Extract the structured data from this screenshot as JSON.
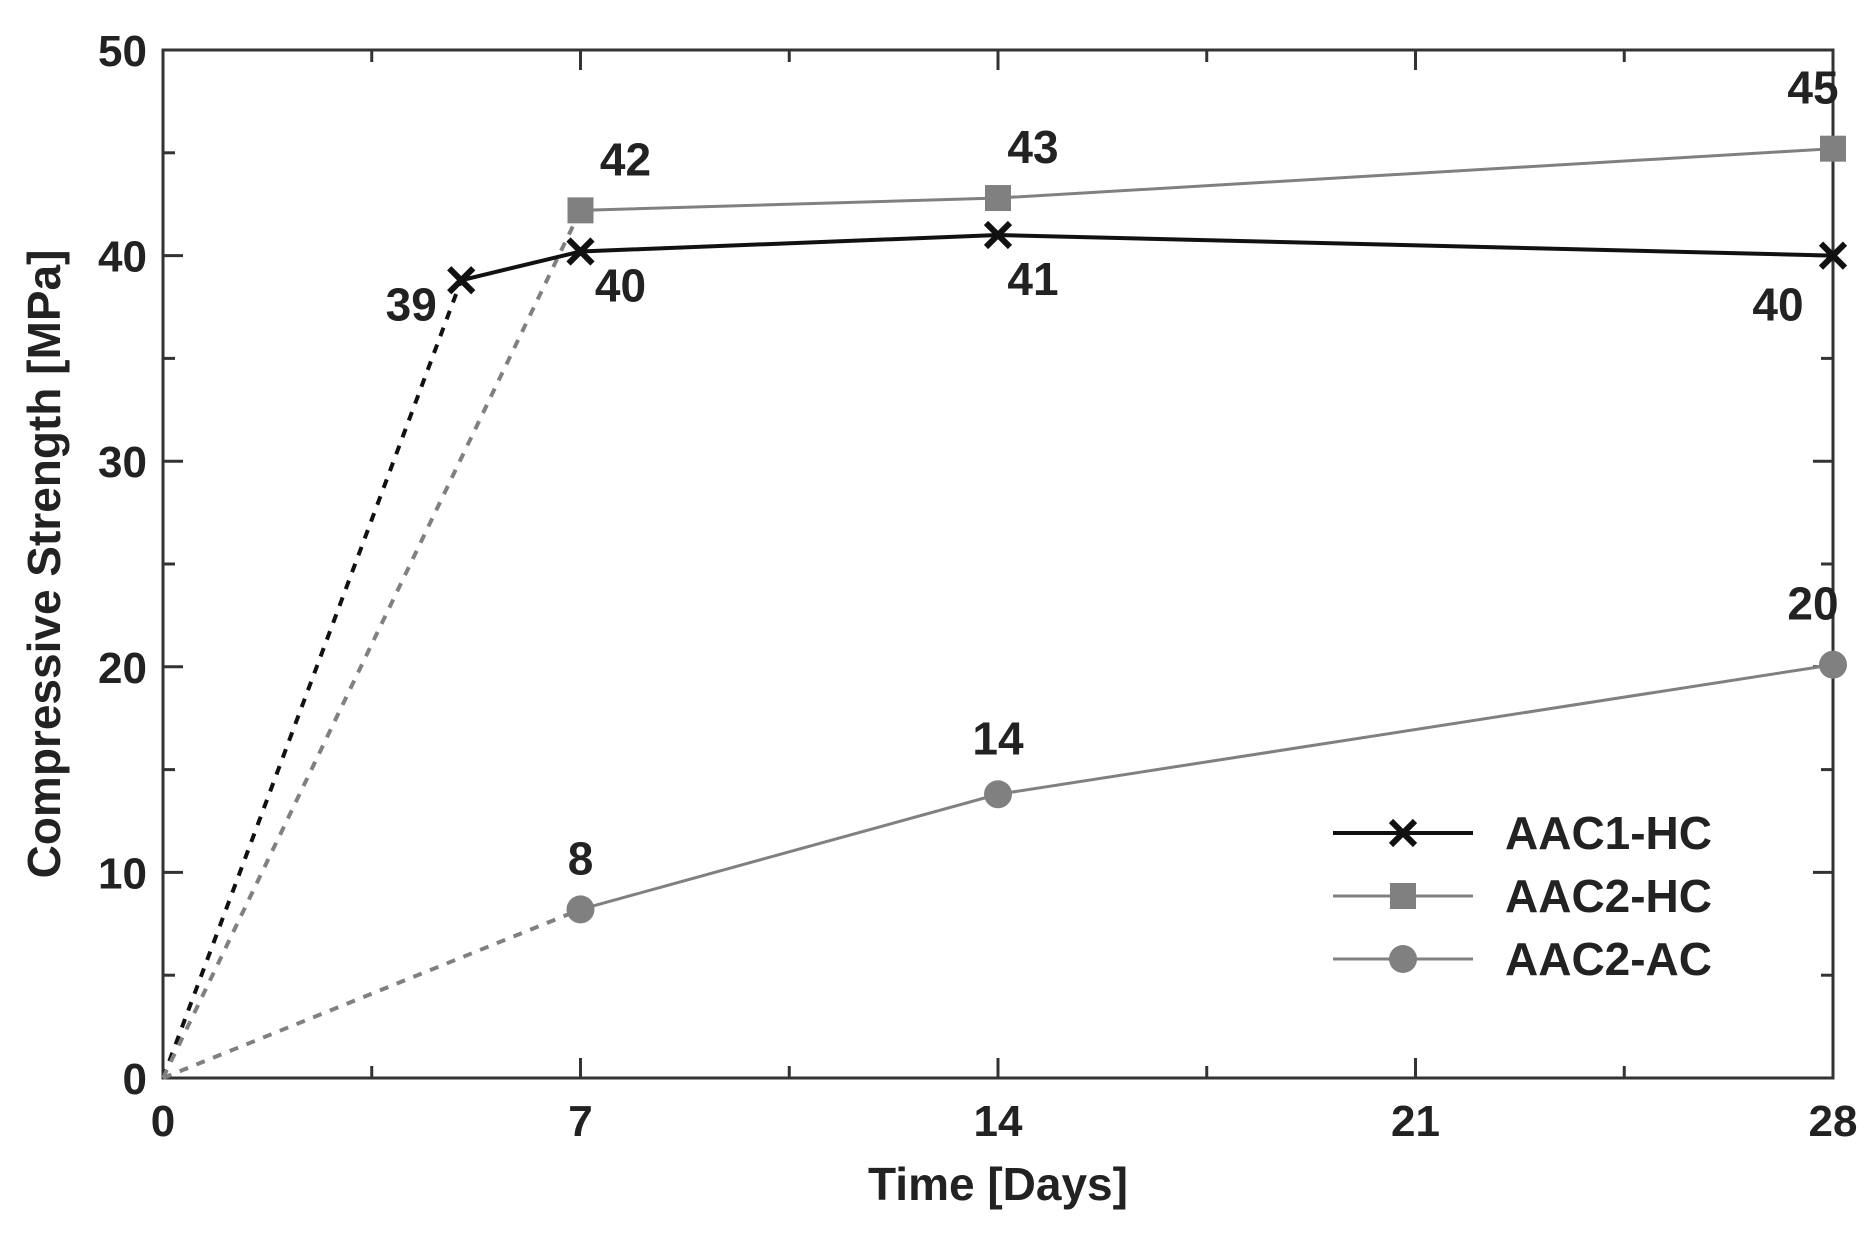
{
  "chart_data": {
    "type": "line",
    "xlabel": "Time [Days]",
    "ylabel": "Compressive Strength [MPa]",
    "xlim": [
      0,
      28
    ],
    "ylim": [
      0,
      50
    ],
    "xticks": [
      0,
      7,
      14,
      21,
      28
    ],
    "yticks": [
      0,
      10,
      20,
      30,
      40,
      50
    ],
    "grid": false,
    "legend_position": "bottom-right",
    "series": [
      {
        "name": "AAC1-HC",
        "marker": "x",
        "color": "#111111",
        "x": [
          5,
          7,
          14,
          28
        ],
        "y": [
          38.8,
          40.2,
          41.0,
          40.0
        ],
        "labels": [
          "39",
          "40",
          "41",
          "40"
        ],
        "dashed_from_origin": true
      },
      {
        "name": "AAC2-HC",
        "marker": "square",
        "color": "#808080",
        "x": [
          7,
          14,
          28
        ],
        "y": [
          42.2,
          42.8,
          45.2
        ],
        "labels": [
          "42",
          "43",
          "45"
        ],
        "dashed_from_origin": true
      },
      {
        "name": "AAC2-AC",
        "marker": "circle",
        "color": "#808080",
        "x": [
          7,
          14,
          28
        ],
        "y": [
          8.2,
          13.8,
          20.1
        ],
        "labels": [
          "8",
          "14",
          "20"
        ],
        "dashed_from_origin": true
      }
    ]
  }
}
